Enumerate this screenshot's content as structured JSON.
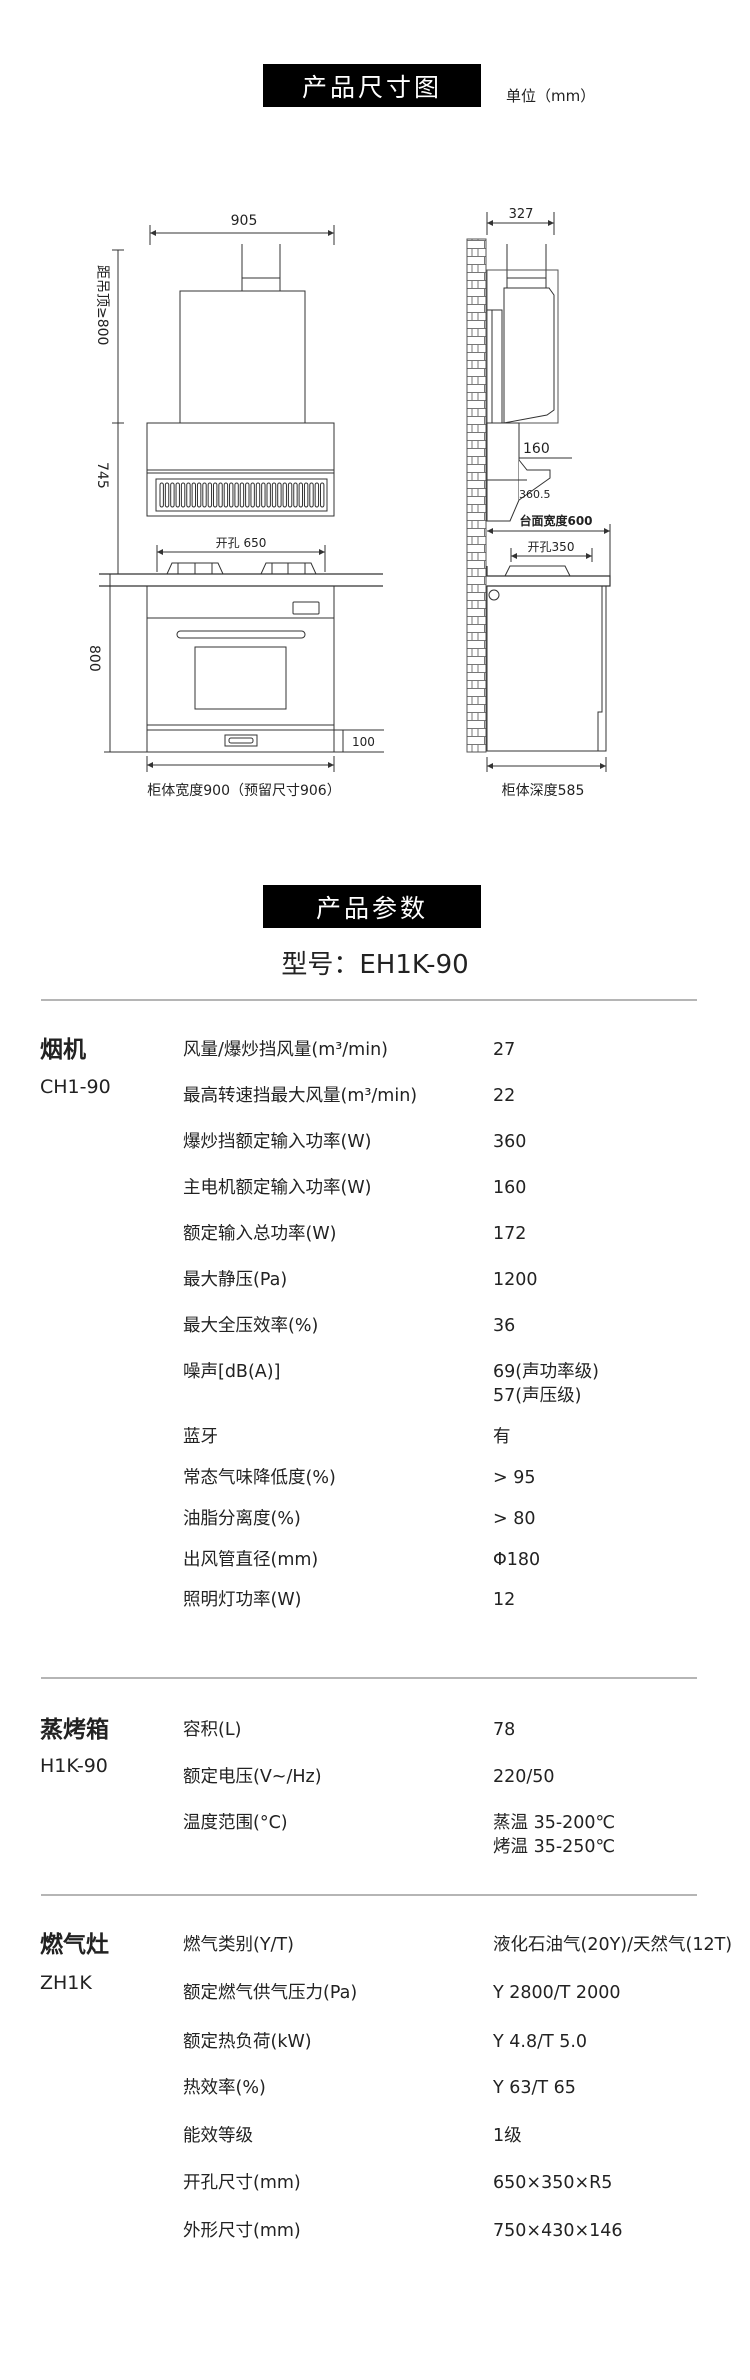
{
  "dimension_section": {
    "title": "产品尺寸图",
    "unit": "单位（mm）",
    "front_view": {
      "hood_width": "905",
      "ceiling_distance": "距吊顶≥800",
      "hood_height": "745",
      "cutout": "开孔 650",
      "cabinet_height": "800",
      "drawer_height": "100",
      "cabinet_width": "柜体宽度900（预留尺寸906）"
    },
    "side_view": {
      "hood_depth": "327",
      "dim_160": "160",
      "dim_360_5": "360.5",
      "counter_width": "台面宽度600",
      "cutout": "开孔350",
      "cabinet_depth": "柜体深度585"
    }
  },
  "params_section": {
    "title": "产品参数",
    "model": "型号：EH1K-90"
  },
  "sections": [
    {
      "name": "烟机",
      "model": "CH1-90",
      "rows": [
        {
          "label": "风量/爆炒挡风量(m³/min)",
          "value": [
            "27"
          ]
        },
        {
          "label": "最高转速挡最大风量(m³/min)",
          "value": [
            "22"
          ]
        },
        {
          "label": "爆炒挡额定输入功率(W)",
          "value": [
            "360"
          ]
        },
        {
          "label": "主电机额定输入功率(W)",
          "value": [
            "160"
          ]
        },
        {
          "label": "额定输入总功率(W)",
          "value": [
            "172"
          ]
        },
        {
          "label": "最大静压(Pa)",
          "value": [
            "1200"
          ]
        },
        {
          "label": "最大全压效率(%)",
          "value": [
            "36"
          ]
        },
        {
          "label": "噪声[dB(A)]",
          "value": [
            "69(声功率级)",
            "57(声压级)"
          ]
        },
        {
          "label": "蓝牙",
          "value": [
            "有"
          ]
        },
        {
          "label": "常态气味降低度(%)",
          "value": [
            " > 95"
          ]
        },
        {
          "label": "油脂分离度(%)",
          "value": [
            " > 80"
          ]
        },
        {
          "label": "出风管直径(mm)",
          "value": [
            "Φ180"
          ]
        },
        {
          "label": "照明灯功率(W)",
          "value": [
            "12"
          ]
        }
      ]
    },
    {
      "name": "蒸烤箱",
      "model": "H1K-90",
      "rows": [
        {
          "label": "容积(L)",
          "value": [
            "78"
          ]
        },
        {
          "label": "额定电压(V~/Hz)",
          "value": [
            "220/50"
          ]
        },
        {
          "label": "温度范围(°C)",
          "value": [
            "蒸温 35-200℃",
            "烤温 35-250℃"
          ]
        }
      ]
    },
    {
      "name": "燃气灶",
      "model": "ZH1K",
      "rows": [
        {
          "label": "燃气类别(Y/T)",
          "value": [
            "液化石油气(20Y)/天然气(12T)"
          ]
        },
        {
          "label": "额定燃气供气压力(Pa)",
          "value": [
            "Y 2800/T 2000"
          ]
        },
        {
          "label": "额定热负荷(kW)",
          "value": [
            "Y 4.8/T 5.0"
          ]
        },
        {
          "label": "热效率(%)",
          "value": [
            "Y 63/T 65"
          ]
        },
        {
          "label": "能效等级",
          "value": [
            "1级"
          ]
        },
        {
          "label": "开孔尺寸(mm)",
          "value": [
            "650×350×R5"
          ]
        },
        {
          "label": "外形尺寸(mm)",
          "value": [
            "750×430×146"
          ]
        }
      ]
    }
  ]
}
